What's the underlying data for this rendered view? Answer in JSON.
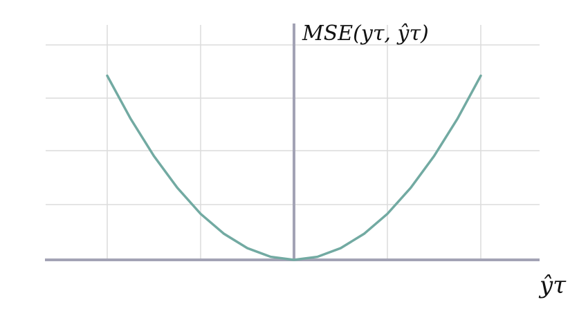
{
  "chart_data": {
    "type": "line",
    "ylabel": "MSE(yτ, ŷτ)",
    "xlabel": "ŷτ",
    "grid": true,
    "xlim": [
      -2,
      2
    ],
    "ylim": [
      0,
      4
    ],
    "x": [
      -2,
      -1.75,
      -1.5,
      -1.25,
      -1,
      -0.75,
      -0.5,
      -0.25,
      0,
      0.25,
      0.5,
      0.75,
      1,
      1.25,
      1.5,
      1.75,
      2
    ],
    "series": [
      {
        "values": [
          3.6,
          2.76,
          2.03,
          1.41,
          0.9,
          0.51,
          0.23,
          0.06,
          0,
          0.06,
          0.23,
          0.51,
          0.9,
          1.41,
          2.03,
          2.76,
          3.6
        ],
        "color": "#72aaa2"
      }
    ]
  }
}
